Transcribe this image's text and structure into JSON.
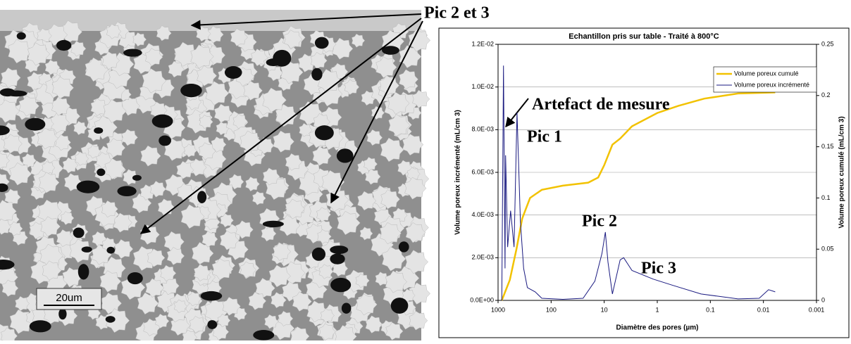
{
  "image": {
    "label": "Pic 2 et 3",
    "scale_bar": "20um"
  },
  "chart_data": {
    "type": "line",
    "title": "Echantillon pris sur table - Traité à 800°C",
    "x_label": "Diamètre des pores (µm)",
    "y_label": "Volume poreux incrémenté (mL/cm 3)",
    "y2_label": "Volume poreux cumulé (mL/cm 3)",
    "log_x": true,
    "xlim": [
      1000,
      0.001
    ],
    "xticks": [
      1000,
      100,
      10,
      1,
      0.1,
      0.01,
      0.001
    ],
    "ylim": [
      0,
      0.012
    ],
    "yticks": [
      {
        "value": 0,
        "label": "0.0E+00"
      },
      {
        "value": 0.002,
        "label": "2.0E-03"
      },
      {
        "value": 0.004,
        "label": "4.0E-03"
      },
      {
        "value": 0.006,
        "label": "6.0E-03"
      },
      {
        "value": 0.008,
        "label": "8.0E-03"
      },
      {
        "value": 0.01,
        "label": "1.0E-02"
      },
      {
        "value": 0.012,
        "label": "1.2E-02"
      }
    ],
    "y2lim": [
      0,
      0.25
    ],
    "y2ticks": [
      0,
      0.05,
      0.1,
      0.15,
      0.2,
      0.25
    ],
    "grid": true,
    "legend": "upper right",
    "annotations": [
      "Artefact de mesure",
      "Pic 1",
      "Pic 2",
      "Pic 3"
    ],
    "series": [
      {
        "name": "Volume poreux cumulé",
        "color": "#f2c200",
        "axis": "y2",
        "x": [
          850,
          600,
          450,
          350,
          250,
          150,
          60,
          20,
          13,
          10,
          7,
          5,
          3,
          1,
          0.4,
          0.13,
          0.03,
          0.006
        ],
        "values": [
          0,
          0.02,
          0.05,
          0.08,
          0.1,
          0.108,
          0.112,
          0.115,
          0.12,
          0.132,
          0.152,
          0.158,
          0.17,
          0.183,
          0.19,
          0.197,
          0.202,
          0.203
        ]
      },
      {
        "name": "Volume poreux incrémenté",
        "color": "#1a1a80",
        "x": [
          850,
          790,
          740,
          720,
          660,
          580,
          500,
          440,
          380,
          330,
          280,
          200,
          150,
          60,
          25,
          15,
          11,
          9.5,
          8.5,
          7,
          5,
          4.3,
          3,
          1.2,
          0.5,
          0.15,
          0.03,
          0.012,
          0.008,
          0.006
        ],
        "values": [
          0,
          0.011,
          0.0015,
          0.0068,
          0.0025,
          0.0042,
          0.0025,
          0.0088,
          0.0037,
          0.0015,
          0.0006,
          0.0004,
          0.0001,
          5e-05,
          0.0001,
          0.0009,
          0.0022,
          0.0032,
          0.0018,
          0.0003,
          0.0019,
          0.002,
          0.0014,
          0.001,
          0.0007,
          0.0003,
          7e-05,
          0.0001,
          0.0005,
          0.0004
        ]
      }
    ]
  }
}
